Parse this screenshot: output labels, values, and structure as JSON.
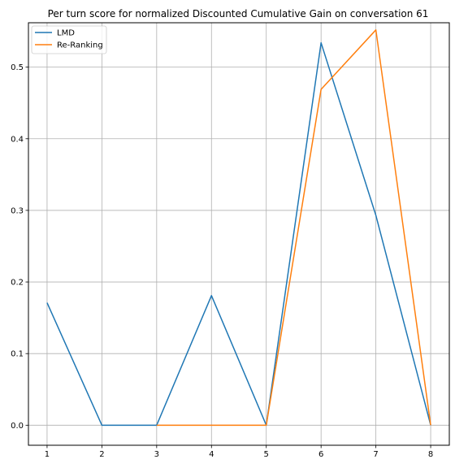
{
  "chart_data": {
    "type": "line",
    "title": "Per turn score for normalized Discounted Cumulative Gain on conversation 61",
    "xlabel": "",
    "ylabel": "",
    "x": [
      1,
      2,
      3,
      4,
      5,
      6,
      7,
      8
    ],
    "xlim": [
      0.66,
      8.34
    ],
    "ylim": [
      -0.028,
      0.562
    ],
    "xticks": [
      1,
      2,
      3,
      4,
      5,
      6,
      7,
      8
    ],
    "yticks": [
      0.0,
      0.1,
      0.2,
      0.3,
      0.4,
      0.5
    ],
    "ytick_labels": [
      "0.0",
      "0.1",
      "0.2",
      "0.3",
      "0.4",
      "0.5"
    ],
    "xtick_labels": [
      "1",
      "2",
      "3",
      "4",
      "5",
      "6",
      "7",
      "8"
    ],
    "grid": true,
    "legend_position": "upper-left",
    "series": [
      {
        "name": "LMD",
        "color": "#1f77b4",
        "x": [
          1,
          2,
          3,
          4,
          5,
          6,
          7,
          8
        ],
        "values": [
          0.171,
          0.0,
          0.0,
          0.181,
          0.0,
          0.534,
          0.293,
          0.0
        ]
      },
      {
        "name": "Re-Ranking",
        "color": "#ff7f0e",
        "x": [
          3,
          4,
          5,
          6,
          7,
          8
        ],
        "values": [
          0.0,
          0.0,
          0.0,
          0.469,
          0.552,
          0.0
        ]
      }
    ]
  }
}
